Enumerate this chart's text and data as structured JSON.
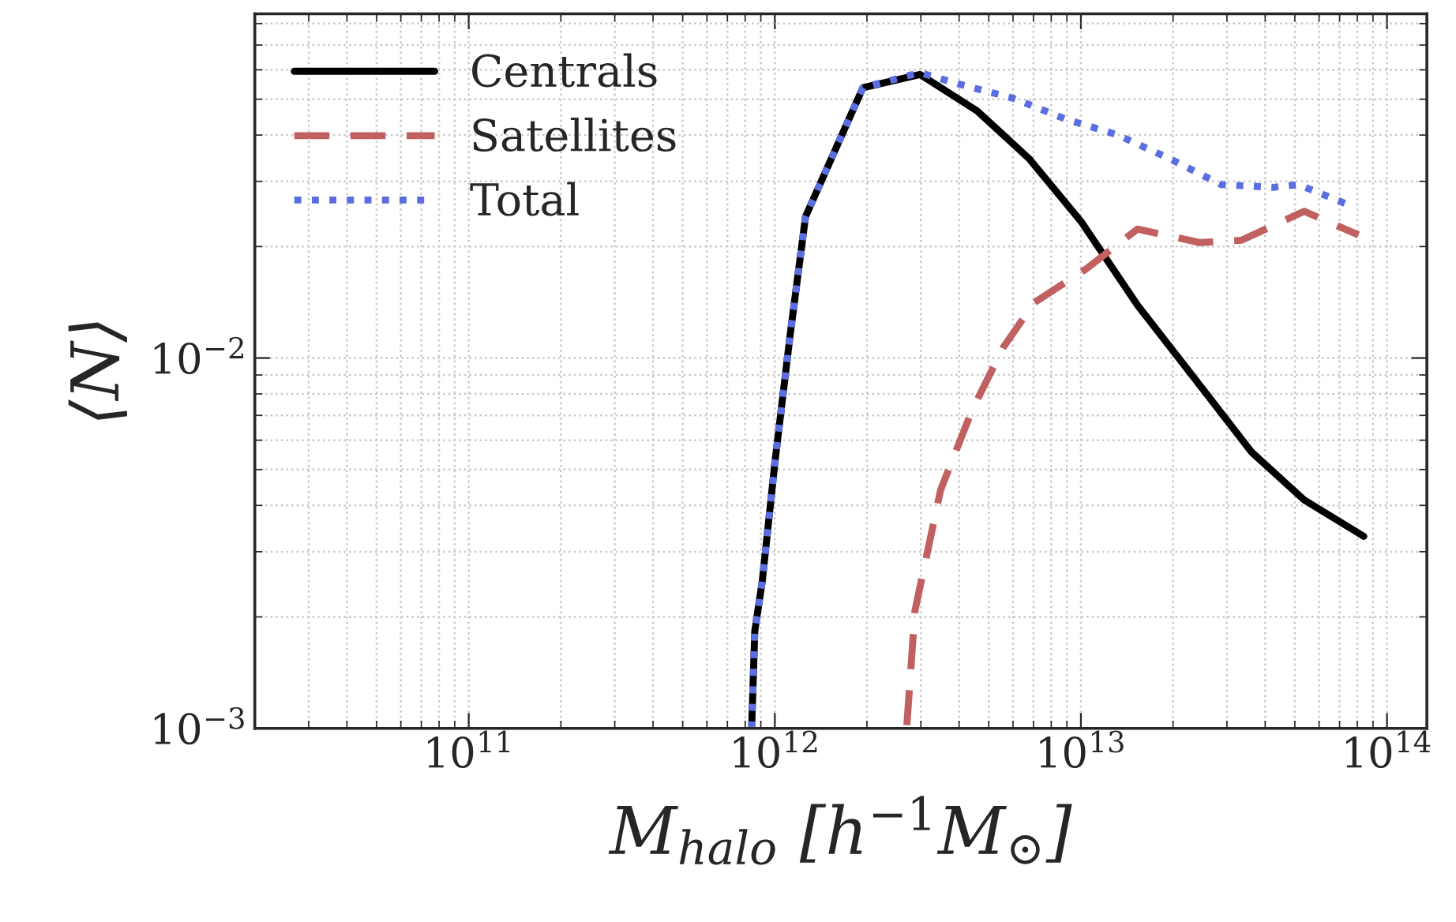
{
  "chart_data": {
    "type": "line",
    "xlabel": "M$_{halo}$ [h$^{−1}$M$_{⊙}$]",
    "ylabel": "⟨N⟩",
    "log": "xy",
    "xlim": [
      20000000000.0,
      135000000000000.0
    ],
    "ylim": [
      0.001,
      0.085
    ],
    "xticks": [
      {
        "value": 100000000000.0,
        "label": "10$^{11}$"
      },
      {
        "value": 1000000000000.0,
        "label": "10$^{12}$"
      },
      {
        "value": 10000000000000.0,
        "label": "10$^{13}$"
      },
      {
        "value": 100000000000000.0,
        "label": "10$^{14}$"
      }
    ],
    "yticks": [
      {
        "value": 0.001,
        "label": "10$^{−3}$"
      },
      {
        "value": 0.01,
        "label": "10$^{−2}$"
      }
    ],
    "grid": true,
    "legend": "top left",
    "series": [
      {
        "name": "Centrals",
        "color": "#000000",
        "line_style": "solid",
        "x": [
          840000000000.0,
          860000000000.0,
          910000000000.0,
          1000000000000.0,
          1120000000000.0,
          1260000000000.0,
          1940000000000.0,
          2980000000000.0,
          4580000000000.0,
          6760000000000.0,
          10000000000000.0,
          15300000000000.0,
          23600000000000.0,
          36200000000000.0,
          53600000000000.0,
          84000000000000.0
        ],
        "values": [
          0.001,
          0.00183,
          0.0025,
          0.0052,
          0.0114,
          0.0241,
          0.0537,
          0.0583,
          0.0465,
          0.0346,
          0.0234,
          0.0139,
          0.00877,
          0.00556,
          0.00414,
          0.0033
        ]
      },
      {
        "name": "Satellites",
        "color": "#c06060",
        "line_style": "dashed",
        "x": [
          2700000000000.0,
          2870000000000.0,
          3480000000000.0,
          4400000000000.0,
          5570000000000.0,
          7030000000000.0,
          10400000000000.0,
          15300000000000.0,
          24500000000000.0,
          33500000000000.0,
          53600000000000.0,
          80700000000000.0
        ],
        "values": [
          0.00102,
          0.00208,
          0.0044,
          0.0072,
          0.01067,
          0.0141,
          0.0174,
          0.0223,
          0.0205,
          0.0208,
          0.0249,
          0.0215
        ]
      },
      {
        "name": "Total",
        "color": "#5b6ee1",
        "line_style": "dotted",
        "x": [
          840000000000.0,
          860000000000.0,
          910000000000.0,
          1000000000000.0,
          1120000000000.0,
          1260000000000.0,
          1940000000000.0,
          2980000000000.0,
          4070000000000.0,
          6000000000000.0,
          8900000000000.0,
          13100000000000.0,
          19400000000000.0,
          28700000000000.0,
          42400000000000.0,
          51300000000000.0,
          76000000000000.0
        ],
        "values": [
          0.001,
          0.00183,
          0.0025,
          0.0052,
          0.0114,
          0.0241,
          0.0537,
          0.059,
          0.0547,
          0.0503,
          0.0442,
          0.0401,
          0.0346,
          0.0294,
          0.0289,
          0.0294,
          0.0258
        ]
      }
    ]
  }
}
